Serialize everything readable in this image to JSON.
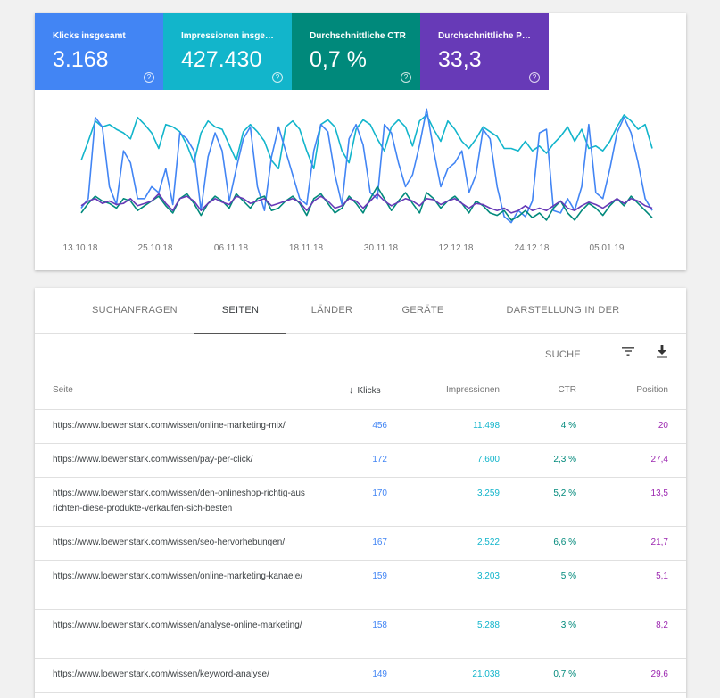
{
  "metrics": [
    {
      "label": "Klicks insgesamt",
      "value": "3.168",
      "color": "#4285f4"
    },
    {
      "label": "Impressionen insgesamt",
      "value": "427.430",
      "color": "#12b5cb"
    },
    {
      "label": "Durchschnittliche CTR",
      "value": "0,7 %",
      "color": "#00897b"
    },
    {
      "label": "Durchschnittliche Position",
      "value": "33,3",
      "color": "#673ab7"
    }
  ],
  "help_icon": "?",
  "chart_data": {
    "type": "line",
    "x_ticks": [
      "13.10.18",
      "25.10.18",
      "06.11.18",
      "18.11.18",
      "30.11.18",
      "12.12.18",
      "24.12.18",
      "05.01.19"
    ],
    "grid": false,
    "legend": "none",
    "series": [
      {
        "color": "#12b5cb",
        "values": [
          0.62,
          0.78,
          0.95,
          0.9,
          0.92,
          0.88,
          0.85,
          0.8,
          0.98,
          0.92,
          0.85,
          0.72,
          0.92,
          0.9,
          0.86,
          0.75,
          0.6,
          0.85,
          0.95,
          0.9,
          0.88,
          0.75,
          0.62,
          0.86,
          0.92,
          0.86,
          0.78,
          0.62,
          0.55,
          0.9,
          0.95,
          0.88,
          0.7,
          0.55,
          0.92,
          0.96,
          0.9,
          0.7,
          0.6,
          0.88,
          0.96,
          0.92,
          0.8,
          0.7,
          0.9,
          0.96,
          0.9,
          0.74,
          0.95,
          1.0,
          0.88,
          0.78,
          0.95,
          0.88,
          0.78,
          0.72,
          0.8,
          0.9,
          0.86,
          0.82,
          0.72,
          0.72,
          0.7,
          0.78,
          0.7,
          0.74,
          0.68,
          0.76,
          0.82,
          0.9,
          0.78,
          0.88,
          0.72,
          0.74,
          0.7,
          0.78,
          0.9,
          1.0,
          0.95,
          0.88,
          0.92,
          0.72
        ]
      },
      {
        "color": "#4285f4",
        "values": [
          0.22,
          0.3,
          0.98,
          0.9,
          0.4,
          0.25,
          0.7,
          0.6,
          0.3,
          0.3,
          0.4,
          0.35,
          0.55,
          0.25,
          0.85,
          0.8,
          0.7,
          0.2,
          0.65,
          0.85,
          0.7,
          0.28,
          0.55,
          0.8,
          0.9,
          0.4,
          0.2,
          0.65,
          0.9,
          0.7,
          0.5,
          0.3,
          0.25,
          0.7,
          0.92,
          0.86,
          0.5,
          0.25,
          0.8,
          0.92,
          0.75,
          0.35,
          0.3,
          0.92,
          0.85,
          0.6,
          0.4,
          0.5,
          0.75,
          1.05,
          0.7,
          0.4,
          0.55,
          0.6,
          0.7,
          0.35,
          0.5,
          0.88,
          0.8,
          0.4,
          0.15,
          0.1,
          0.2,
          0.15,
          0.28,
          0.85,
          0.88,
          0.2,
          0.18,
          0.3,
          0.2,
          0.4,
          0.92,
          0.35,
          0.3,
          0.55,
          0.85,
          0.98,
          0.85,
          0.6,
          0.3,
          0.2
        ]
      },
      {
        "color": "#00897b",
        "values": [
          0.18,
          0.26,
          0.32,
          0.28,
          0.26,
          0.22,
          0.3,
          0.28,
          0.2,
          0.24,
          0.28,
          0.32,
          0.24,
          0.18,
          0.3,
          0.34,
          0.26,
          0.16,
          0.26,
          0.32,
          0.28,
          0.22,
          0.34,
          0.28,
          0.22,
          0.3,
          0.32,
          0.2,
          0.22,
          0.28,
          0.32,
          0.26,
          0.16,
          0.3,
          0.34,
          0.26,
          0.18,
          0.22,
          0.32,
          0.26,
          0.18,
          0.3,
          0.4,
          0.3,
          0.2,
          0.28,
          0.35,
          0.26,
          0.18,
          0.35,
          0.3,
          0.22,
          0.28,
          0.32,
          0.26,
          0.18,
          0.28,
          0.24,
          0.18,
          0.16,
          0.2,
          0.12,
          0.15,
          0.2,
          0.14,
          0.18,
          0.12,
          0.22,
          0.28,
          0.18,
          0.12,
          0.2,
          0.26,
          0.22,
          0.16,
          0.24,
          0.3,
          0.24,
          0.32,
          0.26,
          0.2,
          0.14
        ]
      },
      {
        "color": "#673ab7",
        "values": [
          0.24,
          0.28,
          0.3,
          0.26,
          0.28,
          0.25,
          0.26,
          0.3,
          0.24,
          0.26,
          0.28,
          0.34,
          0.26,
          0.2,
          0.3,
          0.32,
          0.28,
          0.2,
          0.26,
          0.3,
          0.27,
          0.25,
          0.32,
          0.3,
          0.26,
          0.28,
          0.3,
          0.24,
          0.26,
          0.28,
          0.3,
          0.27,
          0.2,
          0.28,
          0.32,
          0.28,
          0.22,
          0.24,
          0.3,
          0.28,
          0.22,
          0.28,
          0.34,
          0.28,
          0.24,
          0.27,
          0.3,
          0.28,
          0.24,
          0.3,
          0.29,
          0.25,
          0.28,
          0.3,
          0.26,
          0.22,
          0.26,
          0.25,
          0.22,
          0.2,
          0.22,
          0.18,
          0.2,
          0.24,
          0.2,
          0.22,
          0.2,
          0.24,
          0.28,
          0.22,
          0.2,
          0.24,
          0.27,
          0.25,
          0.22,
          0.26,
          0.3,
          0.26,
          0.3,
          0.28,
          0.24,
          0.22
        ]
      }
    ]
  },
  "tabs": [
    {
      "label": "SUCHANFRAGEN",
      "active": false
    },
    {
      "label": "SEITEN",
      "active": true
    },
    {
      "label": "LÄNDER",
      "active": false
    },
    {
      "label": "GERÄTE",
      "active": false
    },
    {
      "label": "DARSTELLUNG IN DER SUCHE",
      "active": false
    }
  ],
  "toolbar": {
    "filter_icon": "filter-icon",
    "download_icon": "download-icon"
  },
  "table": {
    "headers": {
      "page": "Seite",
      "sort_icon": "↓",
      "clicks": "Klicks",
      "impressions": "Impressionen",
      "ctr": "CTR",
      "position": "Position"
    },
    "rows": [
      {
        "url": "https://www.loewenstark.com/wissen/online-marketing-mix/",
        "clicks": "456",
        "impressions": "11.498",
        "ctr": "4 %",
        "position": "20"
      },
      {
        "url": "https://www.loewenstark.com/wissen/pay-per-click/",
        "clicks": "172",
        "impressions": "7.600",
        "ctr": "2,3 %",
        "position": "27,4"
      },
      {
        "url": "https://www.loewenstark.com/wissen/den-onlineshop-richtig-ausrichten-diese-produkte-verkaufen-sich-besten",
        "clicks": "170",
        "impressions": "3.259",
        "ctr": "5,2 %",
        "position": "13,5"
      },
      {
        "url": "https://www.loewenstark.com/wissen/seo-hervorhebungen/",
        "clicks": "167",
        "impressions": "2.522",
        "ctr": "6,6 %",
        "position": "21,7"
      },
      {
        "url": "https://www.loewenstark.com/wissen/online-marketing-kanaele/",
        "clicks": "159",
        "impressions": "3.203",
        "ctr": "5 %",
        "position": "5,1"
      },
      {
        "url": "https://www.loewenstark.com/wissen/analyse-online-marketing/",
        "clicks": "158",
        "impressions": "5.288",
        "ctr": "3 %",
        "position": "8,2"
      },
      {
        "url": "https://www.loewenstark.com/wissen/keyword-analyse/",
        "clicks": "149",
        "impressions": "21.038",
        "ctr": "0,7 %",
        "position": "29,6"
      }
    ]
  }
}
